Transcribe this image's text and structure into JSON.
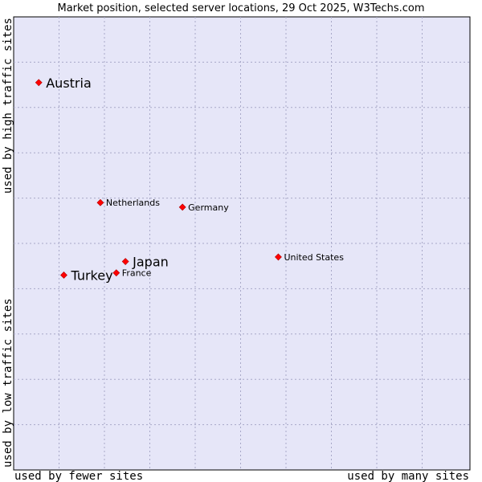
{
  "chart_data": {
    "type": "scatter",
    "title": "Market position, selected server locations, 29 Oct 2025, W3Techs.com",
    "xlabel_left": "used by fewer sites",
    "xlabel_right": "used by many sites",
    "ylabel_bottom": "used by low traffic sites",
    "ylabel_top": "used by high traffic sites",
    "xlim": [
      0,
      100
    ],
    "ylim": [
      0,
      100
    ],
    "grid": true,
    "points": [
      {
        "label": "Austria",
        "x": 5.5,
        "y": 85.5,
        "emphasis": true
      },
      {
        "label": "Netherlands",
        "x": 19,
        "y": 59,
        "emphasis": false
      },
      {
        "label": "Germany",
        "x": 37,
        "y": 58,
        "emphasis": false
      },
      {
        "label": "United States",
        "x": 58,
        "y": 47,
        "emphasis": false
      },
      {
        "label": "Japan",
        "x": 24.5,
        "y": 46,
        "emphasis": true
      },
      {
        "label": "Turkey",
        "x": 11,
        "y": 43,
        "emphasis": true
      },
      {
        "label": "France",
        "x": 22.5,
        "y": 43.5,
        "emphasis": false
      }
    ]
  },
  "colors": {
    "plot_background": "#e6e6f8",
    "marker": "#ff0000",
    "frame": "#000000"
  }
}
